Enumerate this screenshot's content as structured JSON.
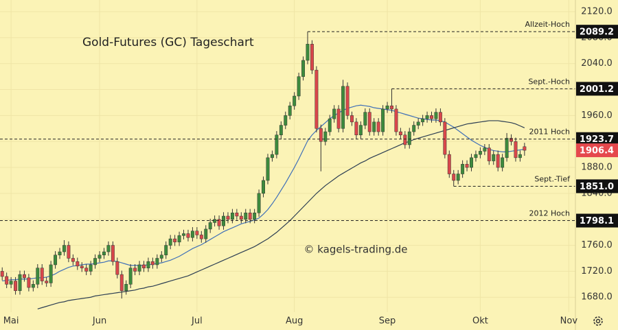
{
  "chart_data": {
    "type": "candlestick",
    "title": "Gold-Futures (GC) Tageschart",
    "watermark": "© kagels-trading.de",
    "categories": [
      null,
      null,
      "Mai",
      null,
      null,
      null,
      null,
      null,
      null,
      null,
      null,
      null,
      null,
      null,
      null,
      null,
      null,
      null,
      null,
      null,
      null,
      null,
      "Jun",
      null,
      null,
      null,
      null,
      null,
      null,
      null,
      null,
      null,
      null,
      null,
      null,
      null,
      null,
      null,
      null,
      null,
      null,
      null,
      null,
      null,
      "Jul",
      null,
      null,
      null,
      null,
      null,
      null,
      null,
      null,
      null,
      null,
      null,
      null,
      null,
      null,
      null,
      null,
      null,
      null,
      null,
      null,
      null,
      "Aug",
      null,
      null,
      null,
      null,
      null,
      null,
      null,
      null,
      null,
      null,
      null,
      null,
      null,
      null,
      null,
      null,
      null,
      null,
      null,
      null,
      "Sep",
      null,
      null,
      null,
      null,
      null,
      null,
      null,
      null,
      null,
      null,
      null,
      null,
      null,
      null,
      null,
      null,
      null,
      null,
      null,
      null,
      "Okt",
      null,
      null,
      null,
      null,
      null,
      null,
      null,
      null,
      null,
      null,
      null,
      null,
      null,
      null,
      null,
      null,
      null,
      null,
      null,
      "Nov",
      null
    ],
    "open": [
      1720,
      1712,
      1700,
      1705,
      1690,
      1715,
      1710,
      1695,
      1700,
      1725,
      1705,
      1702,
      1730,
      1745,
      1750,
      1760,
      1740,
      1735,
      1728,
      1725,
      1720,
      1730,
      1740,
      1745,
      1750,
      1760,
      1735,
      1715,
      1690,
      1700,
      1725,
      1720,
      1730,
      1725,
      1735,
      1730,
      1740,
      1745,
      1760,
      1770,
      1765,
      1775,
      1778,
      1772,
      1782,
      1776,
      1770,
      1785,
      1795,
      1800,
      1790,
      1805,
      1800,
      1810,
      1805,
      1800,
      1810,
      1800,
      1810,
      1840,
      1860,
      1895,
      1900,
      1930,
      1945,
      1960,
      1975,
      1990,
      2020,
      2045,
      2070,
      2030,
      1940,
      1920,
      1935,
      1955,
      1970,
      1940,
      2005,
      1960,
      1950,
      1930,
      1945,
      1965,
      1935,
      1950,
      1935,
      1970,
      1975,
      1970,
      1935,
      1930,
      1915,
      1935,
      1945,
      1950,
      1955,
      1960,
      1955,
      1965,
      1950,
      1900,
      1870,
      1860,
      1870,
      1885,
      1880,
      1895,
      1900,
      1905,
      1910,
      1890,
      1900,
      1880,
      1895,
      1925,
      1920,
      1895,
      1912,
      null,
      null,
      null,
      null,
      null,
      null,
      null,
      null,
      null,
      null,
      null
    ],
    "high": [
      1726,
      1718,
      1711,
      1711,
      1721,
      1721,
      1716,
      1706,
      1731,
      1731,
      1711,
      1736,
      1751,
      1756,
      1768,
      1766,
      1746,
      1741,
      1734,
      1731,
      1736,
      1746,
      1751,
      1756,
      1766,
      1766,
      1741,
      1721,
      1706,
      1731,
      1731,
      1736,
      1736,
      1741,
      1741,
      1746,
      1751,
      1766,
      1776,
      1776,
      1781,
      1784,
      1784,
      1788,
      1788,
      1782,
      1791,
      1801,
      1806,
      1806,
      1811,
      1811,
      1816,
      1816,
      1811,
      1816,
      1816,
      1816,
      1846,
      1866,
      1901,
      1906,
      1936,
      1951,
      1966,
      1981,
      1996,
      2026,
      2051,
      2089.2,
      2076,
      2036,
      1946,
      1941,
      1961,
      1976,
      1976,
      2015,
      2011,
      1966,
      1956,
      1951,
      1971,
      1971,
      1956,
      1956,
      1976,
      1981,
      2001.2,
      1976,
      1941,
      1936,
      1941,
      1951,
      1956,
      1961,
      1966,
      1966,
      1971,
      1971,
      1956,
      1906,
      1876,
      1876,
      1891,
      1891,
      1901,
      1906,
      1911,
      1916,
      1916,
      1906,
      1906,
      1901,
      1933,
      1931,
      1926,
      1906,
      1918,
      null,
      null,
      null,
      null,
      null,
      null,
      null,
      null,
      null,
      null,
      null
    ],
    "low": [
      1706,
      1694,
      1694,
      1684,
      1684,
      1704,
      1689,
      1689,
      1694,
      1699,
      1696,
      1696,
      1724,
      1739,
      1744,
      1734,
      1729,
      1722,
      1719,
      1714,
      1714,
      1724,
      1734,
      1739,
      1744,
      1729,
      1709,
      1678,
      1684,
      1694,
      1714,
      1714,
      1719,
      1719,
      1724,
      1724,
      1734,
      1739,
      1754,
      1759,
      1759,
      1769,
      1766,
      1766,
      1770,
      1764,
      1764,
      1779,
      1789,
      1784,
      1784,
      1794,
      1794,
      1799,
      1794,
      1794,
      1794,
      1794,
      1804,
      1834,
      1854,
      1889,
      1894,
      1924,
      1939,
      1954,
      1969,
      1984,
      2014,
      2039,
      2024,
      1934,
      1874,
      1914,
      1929,
      1949,
      1934,
      1934,
      1954,
      1944,
      1924,
      1924,
      1939,
      1929,
      1929,
      1929,
      1929,
      1964,
      1964,
      1929,
      1924,
      1909,
      1909,
      1929,
      1939,
      1944,
      1949,
      1949,
      1949,
      1944,
      1894,
      1864,
      1851,
      1854,
      1864,
      1874,
      1874,
      1889,
      1894,
      1899,
      1884,
      1884,
      1874,
      1874,
      1889,
      1914,
      1889,
      1889,
      1898,
      null,
      null,
      null,
      null,
      null,
      null,
      null,
      null,
      null,
      null,
      null
    ],
    "close": [
      1712,
      1700,
      1705,
      1690,
      1715,
      1710,
      1695,
      1700,
      1725,
      1705,
      1702,
      1730,
      1745,
      1750,
      1760,
      1740,
      1735,
      1728,
      1725,
      1720,
      1730,
      1740,
      1745,
      1750,
      1760,
      1735,
      1715,
      1690,
      1700,
      1725,
      1720,
      1730,
      1725,
      1735,
      1730,
      1740,
      1745,
      1760,
      1770,
      1765,
      1775,
      1778,
      1772,
      1782,
      1776,
      1770,
      1785,
      1795,
      1800,
      1790,
      1805,
      1800,
      1810,
      1805,
      1800,
      1810,
      1800,
      1810,
      1840,
      1860,
      1895,
      1900,
      1930,
      1945,
      1960,
      1975,
      1990,
      2020,
      2045,
      2070,
      2030,
      1940,
      1920,
      1935,
      1955,
      1970,
      1940,
      2005,
      1960,
      1950,
      1930,
      1945,
      1965,
      1935,
      1950,
      1935,
      1970,
      1975,
      1970,
      1935,
      1930,
      1915,
      1935,
      1945,
      1950,
      1955,
      1960,
      1955,
      1965,
      1950,
      1900,
      1870,
      1860,
      1870,
      1885,
      1880,
      1895,
      1900,
      1905,
      1910,
      1890,
      1900,
      1880,
      1895,
      1925,
      1920,
      1895,
      1900,
      1906.4,
      null,
      null,
      null,
      null,
      null,
      null,
      null,
      null,
      null,
      null,
      null
    ],
    "up_color": "#3d8b3d",
    "down_color": "#d9474b",
    "moving_averages": [
      {
        "color": "#3e6fb8",
        "values": [
          1705,
          1706,
          1707,
          1707,
          1708,
          1708,
          1708,
          1709,
          1710,
          1710,
          1711,
          1713,
          1716,
          1720,
          1723,
          1726,
          1728,
          1729,
          1730,
          1731,
          1731,
          1732,
          1733,
          1734,
          1736,
          1736,
          1735,
          1733,
          1731,
          1729,
          1729,
          1729,
          1729,
          1730,
          1731,
          1732,
          1733,
          1735,
          1737,
          1740,
          1743,
          1747,
          1751,
          1755,
          1758,
          1761,
          1765,
          1769,
          1773,
          1777,
          1781,
          1784,
          1787,
          1790,
          1793,
          1795,
          1797,
          1799,
          1802,
          1808,
          1815,
          1824,
          1834,
          1845,
          1856,
          1868,
          1880,
          1893,
          1907,
          1921,
          1930,
          1937,
          1943,
          1949,
          1955,
          1960,
          1964,
          1968,
          1971,
          1973,
          1975,
          1976,
          1975,
          1974,
          1972,
          1971,
          1970,
          1969,
          1968,
          1966,
          1964,
          1962,
          1960,
          1958,
          1956,
          1955,
          1954,
          1953,
          1953,
          1952,
          1950,
          1946,
          1942,
          1937,
          1932,
          1927,
          1922,
          1918,
          1914,
          1911,
          1908,
          1906,
          1905,
          1904,
          1904,
          1905,
          1906,
          1907,
          1908,
          null,
          null,
          null,
          null,
          null,
          null,
          null,
          null,
          null,
          null,
          null
        ]
      },
      {
        "color": "#2b3d52",
        "values": [
          null,
          null,
          null,
          null,
          null,
          null,
          null,
          null,
          1662,
          1664,
          1666,
          1668,
          1670,
          1672,
          1673,
          1675,
          1676,
          1677,
          1678,
          1679,
          1680,
          1682,
          1683,
          1684,
          1685,
          1686,
          1687,
          1688,
          1689,
          1690,
          1691,
          1693,
          1694,
          1696,
          1697,
          1699,
          1701,
          1703,
          1705,
          1707,
          1709,
          1711,
          1713,
          1716,
          1719,
          1722,
          1725,
          1728,
          1731,
          1734,
          1737,
          1740,
          1743,
          1746,
          1749,
          1752,
          1755,
          1758,
          1762,
          1766,
          1770,
          1775,
          1780,
          1786,
          1792,
          1798,
          1805,
          1812,
          1819,
          1826,
          1833,
          1840,
          1846,
          1852,
          1857,
          1862,
          1867,
          1871,
          1875,
          1879,
          1883,
          1887,
          1890,
          1894,
          1897,
          1900,
          1903,
          1906,
          1909,
          1912,
          1915,
          1918,
          1920,
          1923,
          1925,
          1927,
          1929,
          1931,
          1933,
          1935,
          1937,
          1939,
          1941,
          1943,
          1945,
          1947,
          1948,
          1949,
          1950,
          1951,
          1952,
          1952,
          1952,
          1951,
          1950,
          1949,
          1947,
          1944,
          1941,
          null,
          null,
          null,
          null,
          null,
          null,
          null,
          null,
          null,
          null,
          null
        ]
      }
    ],
    "levels": [
      {
        "name": "Allzeit-Hoch",
        "value": 2089.2,
        "label": "2089.2"
      },
      {
        "name": "Sept.-Hoch",
        "value": 2001.2,
        "label": "2001.2"
      },
      {
        "name": "2011 Hoch",
        "value": 1923.7,
        "label": "1923.7"
      },
      {
        "name": "Sept.-Tief",
        "value": 1851,
        "label": "1851.0"
      },
      {
        "name": "2012 Hoch",
        "value": 1798.1,
        "label": "1798.1"
      }
    ],
    "current_price_color": "#e5484d",
    "ylim": [
      1657,
      2138
    ],
    "yticks": [
      {
        "value": 1680,
        "label": "1680.0"
      },
      {
        "value": 1720,
        "label": "1720.0"
      },
      {
        "value": 1760,
        "label": "1760.0"
      },
      {
        "value": 1800,
        "label": "1800.0"
      },
      {
        "value": 1840,
        "label": "1840.0"
      },
      {
        "value": 1880,
        "label": "1880.0"
      },
      {
        "value": 1920,
        "label": "1920.0"
      },
      {
        "value": 1960,
        "label": "1960.0"
      },
      {
        "value": 2000,
        "label": "2000.0"
      },
      {
        "value": 2040,
        "label": "2040.0"
      },
      {
        "value": 2080,
        "label": "2080.0"
      },
      {
        "value": 2120,
        "label": "2120.0"
      }
    ],
    "grid": true
  }
}
